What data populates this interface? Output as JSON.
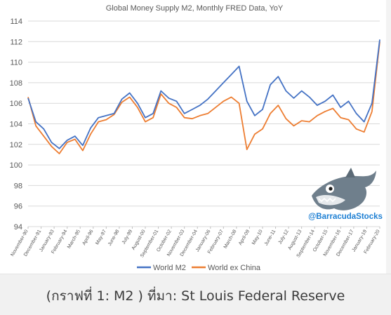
{
  "caption": "(กราฟที่ 1:  M2 ) ที่มา: St Louis Federal Reserve",
  "watermark": "@BarracudaStocks",
  "chart_data": {
    "type": "line",
    "title": "Global Money Supply M2, Monthly FRED Data, YoY",
    "xlabel": "",
    "ylabel": "",
    "ylim": [
      94,
      114
    ],
    "y_ticks": [
      94,
      96,
      98,
      100,
      102,
      104,
      106,
      108,
      110,
      112,
      114
    ],
    "grid": true,
    "legend_position": "bottom",
    "x_tick_labels": [
      "November-90",
      "December-91",
      "January-93",
      "February-94",
      "March-95",
      "April-96",
      "May-97",
      "June-98",
      "July-99",
      "August-00",
      "September-01",
      "October-02",
      "November-03",
      "December-04",
      "January-06",
      "February-07",
      "March-08",
      "April-09",
      "May-10",
      "June-11",
      "July-12",
      "August-13",
      "September-14",
      "October-15",
      "November-16",
      "December-17",
      "January-19",
      "February-20"
    ],
    "x": [
      "Nov-90",
      "Jul-91",
      "Mar-92",
      "Nov-92",
      "Jul-93",
      "Mar-94",
      "Nov-94",
      "Jul-95",
      "Mar-96",
      "Nov-96",
      "Jul-97",
      "Mar-98",
      "Nov-98",
      "Jul-99",
      "Mar-00",
      "Nov-00",
      "Jul-01",
      "Mar-02",
      "Nov-02",
      "Jul-03",
      "Mar-04",
      "Nov-04",
      "Jul-05",
      "Mar-06",
      "Nov-06",
      "Jul-07",
      "Mar-08",
      "Nov-08",
      "Jul-09",
      "Mar-10",
      "Nov-10",
      "Jul-11",
      "Mar-12",
      "Nov-12",
      "Jul-13",
      "Mar-14",
      "Nov-14",
      "Jul-15",
      "Mar-16",
      "Nov-16",
      "Jul-17",
      "Mar-18",
      "Nov-18",
      "Jul-19",
      "Mar-20",
      "Jun-20"
    ],
    "series": [
      {
        "name": "World M2",
        "color": "#4472c4",
        "values": [
          106.5,
          104.2,
          103.5,
          102.2,
          101.6,
          102.4,
          102.8,
          101.9,
          103.6,
          104.6,
          104.8,
          105.0,
          106.4,
          107.0,
          106.0,
          104.6,
          105.0,
          107.2,
          106.5,
          106.2,
          105.0,
          105.4,
          105.8,
          106.4,
          107.2,
          108.0,
          108.8,
          109.6,
          106.2,
          104.8,
          105.4,
          107.8,
          108.6,
          107.2,
          106.5,
          107.2,
          106.6,
          105.8,
          106.2,
          106.8,
          105.6,
          106.2,
          105.0,
          104.2,
          106.0,
          112.2
        ]
      },
      {
        "name": "World ex China",
        "color": "#ed7d31",
        "values": [
          106.6,
          103.8,
          102.8,
          101.8,
          101.1,
          102.2,
          102.5,
          101.4,
          103.0,
          104.2,
          104.4,
          104.9,
          106.1,
          106.6,
          105.6,
          104.2,
          104.6,
          106.9,
          106.0,
          105.6,
          104.6,
          104.5,
          104.8,
          105.0,
          105.6,
          106.2,
          106.6,
          106.0,
          101.5,
          103.0,
          103.5,
          105.0,
          105.8,
          104.5,
          103.8,
          104.3,
          104.2,
          104.8,
          105.2,
          105.5,
          104.6,
          104.4,
          103.5,
          103.2,
          105.2,
          112.0
        ]
      }
    ]
  }
}
